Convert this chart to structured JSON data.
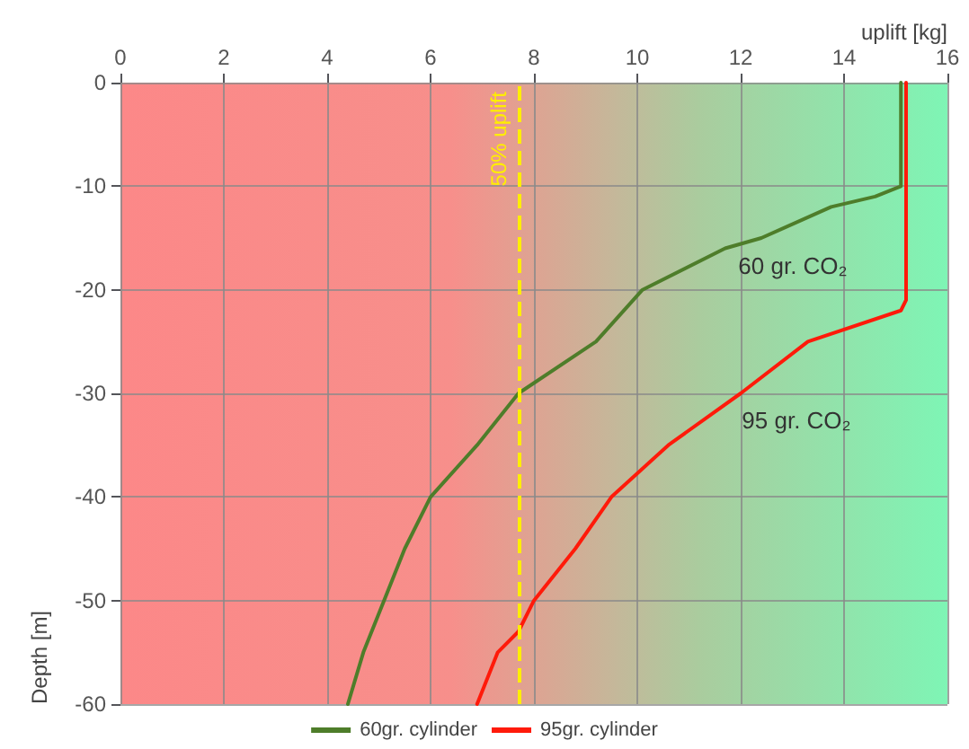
{
  "chart_data": {
    "type": "line",
    "xlabel": "uplift [kg]",
    "ylabel": "Depth [m]",
    "xlim": [
      0,
      16
    ],
    "xticks": [
      0,
      2,
      4,
      6,
      8,
      10,
      12,
      14,
      16
    ],
    "ylim": [
      -60,
      0
    ],
    "yticks": [
      -60,
      -50,
      -40,
      -30,
      -20,
      -10,
      0
    ],
    "grid": true,
    "legend": "bottom",
    "marker": "none",
    "line_style": "solid",
    "series": [
      {
        "name": "60gr. cylinder",
        "color": "#4e7d2a",
        "x": [
          15.1,
          15.1,
          14.6,
          13.75,
          12.4,
          11.7,
          10.1,
          9.2,
          7.7,
          6.9,
          6.0,
          5.5,
          5.1,
          4.7,
          4.4
        ],
        "values": [
          0,
          -10,
          -11,
          -12,
          -15,
          -16,
          -20,
          -25,
          -30,
          -35,
          -40,
          -45,
          -50,
          -55,
          -60
        ]
      },
      {
        "name": "95gr. cylinder",
        "color": "#ff1a0a",
        "x": [
          15.2,
          15.2,
          15.1,
          13.3,
          12.0,
          10.6,
          9.5,
          8.8,
          8.0,
          7.7,
          7.3,
          6.9
        ],
        "values": [
          0,
          -21,
          -22,
          -25,
          -30,
          -35,
          -40,
          -45,
          -50,
          -53,
          -55,
          -60
        ]
      }
    ],
    "ref_lines": [
      {
        "axis": "x",
        "value": 7.7,
        "label": "50% uplift",
        "color": "#ffee00",
        "line_style": "dashed"
      }
    ],
    "annotations": [
      "60 gr. CO₂",
      "95 gr. CO₂"
    ]
  }
}
